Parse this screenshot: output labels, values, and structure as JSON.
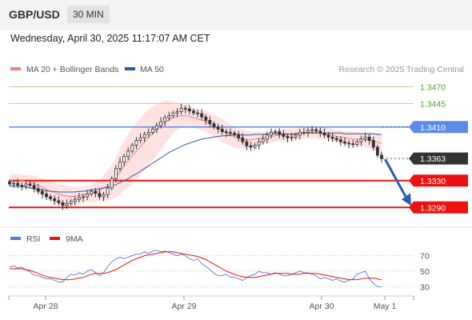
{
  "header": {
    "symbol": "GBP/USD",
    "timeframe": "30 MIN",
    "datetime": "Wednesday, April 30, 2025 11:17:07 AM CET"
  },
  "colors": {
    "bollinger_band": "#ffd9d9",
    "ma20": "#f08080",
    "ma50": "#2f5aa8",
    "candle": "#333333",
    "green_line": "#b5d98e",
    "green_label": "#55a32a",
    "blue_level": "#5b8bea",
    "red_level": "#ee1111",
    "price_tag": "#333333",
    "arrow": "#2a5db0",
    "rsi": "#5577dd",
    "rsi_ma": "#ee1111"
  },
  "chart_data": [
    {
      "type": "candlestick",
      "legend_placement": "top-left",
      "legend": [
        {
          "label": "MA 20 + Bollinger Bands",
          "color": "#f08080"
        },
        {
          "label": "MA 50",
          "color": "#2f5aa8"
        }
      ],
      "credit": "Research © 2025 Trading Central",
      "ylim": [
        1.327,
        1.3485
      ],
      "x_ticks": [
        "Apr 28",
        "Apr 29",
        "Apr 30",
        "May 1"
      ],
      "levels": [
        {
          "label": "1.3470",
          "value": 1.347,
          "style": "resistance-green"
        },
        {
          "label": "1.3445",
          "value": 1.3445,
          "style": "resistance-green"
        },
        {
          "label": "1.3410",
          "value": 1.341,
          "style": "pivot-blue"
        },
        {
          "label": "1.3363",
          "value": 1.3363,
          "style": "current-price"
        },
        {
          "label": "1.3330",
          "value": 1.333,
          "style": "support-red"
        },
        {
          "label": "1.3290",
          "value": 1.329,
          "style": "support-red"
        }
      ],
      "close_series": [
        1.3325,
        1.3326,
        1.3323,
        1.3322,
        1.3325,
        1.3323,
        1.3318,
        1.3314,
        1.331,
        1.3306,
        1.3303,
        1.33,
        1.3297,
        1.3293,
        1.3296,
        1.3299,
        1.3302,
        1.3305,
        1.3306,
        1.331,
        1.3314,
        1.3311,
        1.3306,
        1.3309,
        1.3319,
        1.3333,
        1.3348,
        1.3358,
        1.3366,
        1.3374,
        1.3383,
        1.339,
        1.3394,
        1.3399,
        1.3402,
        1.3407,
        1.3412,
        1.3418,
        1.3424,
        1.3427,
        1.3431,
        1.3433,
        1.3438,
        1.3437,
        1.3434,
        1.3431,
        1.343,
        1.3425,
        1.342,
        1.3415,
        1.341,
        1.3407,
        1.3403,
        1.3402,
        1.3401,
        1.3399,
        1.3394,
        1.3388,
        1.3382,
        1.338,
        1.3383,
        1.3388,
        1.3392,
        1.3398,
        1.3402,
        1.3403,
        1.3399,
        1.3396,
        1.3394,
        1.3395,
        1.3398,
        1.3402,
        1.3402,
        1.3405,
        1.3406,
        1.3404,
        1.3401,
        1.3398,
        1.3395,
        1.3393,
        1.3391,
        1.3388,
        1.3386,
        1.3385,
        1.3384,
        1.3388,
        1.3392,
        1.3395,
        1.339,
        1.338,
        1.3368,
        1.3363
      ],
      "ma20_series": [
        1.333,
        1.3331,
        1.3331,
        1.333,
        1.3329,
        1.3328,
        1.3326,
        1.3323,
        1.332,
        1.3317,
        1.3314,
        1.3312,
        1.331,
        1.3308,
        1.3307,
        1.3306,
        1.3307,
        1.3308,
        1.3309,
        1.331,
        1.3311,
        1.3313,
        1.3315,
        1.3319,
        1.3323,
        1.3328,
        1.3335,
        1.3343,
        1.3352,
        1.336,
        1.3367,
        1.3374,
        1.3381,
        1.3388,
        1.3394,
        1.34,
        1.3406,
        1.3412,
        1.3417,
        1.3421,
        1.3424,
        1.3426,
        1.3427,
        1.3427,
        1.3426,
        1.3424,
        1.3422,
        1.342,
        1.3418,
        1.3415,
        1.3412,
        1.3409,
        1.3405,
        1.3401,
        1.3398,
        1.3395,
        1.3393,
        1.3392,
        1.3391,
        1.3391,
        1.3392,
        1.3393,
        1.3394,
        1.3395,
        1.3396,
        1.3397,
        1.3398,
        1.3398,
        1.3398,
        1.3398,
        1.3399,
        1.34,
        1.3401,
        1.3402,
        1.3402,
        1.3402,
        1.3401,
        1.34,
        1.3399,
        1.3398,
        1.3396,
        1.3395,
        1.3394,
        1.3393,
        1.3392,
        1.3392,
        1.3392,
        1.3391,
        1.339,
        1.3389,
        1.3387,
        1.3385
      ],
      "band_width": [
        0.0009,
        0.0009,
        0.0009,
        0.0009,
        0.0009,
        0.001,
        0.0011,
        0.0012,
        0.0013,
        0.0014,
        0.0015,
        0.0015,
        0.0015,
        0.0016,
        0.0016,
        0.0015,
        0.0014,
        0.0013,
        0.0012,
        0.0012,
        0.0013,
        0.0014,
        0.0016,
        0.0019,
        0.0022,
        0.0026,
        0.003,
        0.0034,
        0.0037,
        0.004,
        0.0042,
        0.0043,
        0.0043,
        0.0043,
        0.0042,
        0.004,
        0.0038,
        0.0035,
        0.0032,
        0.0028,
        0.0024,
        0.002,
        0.0018,
        0.0016,
        0.0015,
        0.0015,
        0.0015,
        0.0015,
        0.0016,
        0.0016,
        0.0017,
        0.0017,
        0.0017,
        0.0017,
        0.0016,
        0.0016,
        0.0015,
        0.0014,
        0.0013,
        0.0012,
        0.0011,
        0.001,
        0.0009,
        0.0009,
        0.0009,
        0.0009,
        0.0009,
        0.0009,
        0.0009,
        0.0009,
        0.0009,
        0.0009,
        0.0009,
        0.0009,
        0.0009,
        0.0009,
        0.0009,
        0.0009,
        0.0009,
        0.0009,
        0.0009,
        0.001,
        0.001,
        0.0011,
        0.0011,
        0.0011,
        0.0011,
        0.0011,
        0.0012,
        0.0013,
        0.0014,
        0.0014
      ],
      "ma50_series": [
        1.3322,
        1.3322,
        1.3321,
        1.3321,
        1.332,
        1.3319,
        1.3318,
        1.3317,
        1.3316,
        1.3315,
        1.3314,
        1.3314,
        1.3313,
        1.3313,
        1.3313,
        1.3313,
        1.3313,
        1.3314,
        1.3314,
        1.3315,
        1.3316,
        1.3317,
        1.3318,
        1.3319,
        1.332,
        1.3322,
        1.3324,
        1.3327,
        1.333,
        1.3333,
        1.3337,
        1.334,
        1.3344,
        1.3348,
        1.3352,
        1.3356,
        1.336,
        1.3364,
        1.3368,
        1.3372,
        1.3375,
        1.3378,
        1.3381,
        1.3384,
        1.3386,
        1.3388,
        1.339,
        1.3392,
        1.3393,
        1.3394,
        1.3395,
        1.3396,
        1.3397,
        1.3397,
        1.3398,
        1.3398,
        1.3398,
        1.3398,
        1.3398,
        1.3398,
        1.3399,
        1.3399,
        1.3399,
        1.34,
        1.34,
        1.34,
        1.34,
        1.34,
        1.34,
        1.34,
        1.34,
        1.3401,
        1.3401,
        1.3401,
        1.3401,
        1.3401,
        1.3401,
        1.3401,
        1.3401,
        1.3401,
        1.3401,
        1.3401,
        1.34,
        1.34,
        1.34,
        1.34,
        1.34,
        1.34,
        1.34,
        1.34,
        1.3399,
        1.3399
      ],
      "forecast_arrow": {
        "from": 1.3363,
        "to": 1.329
      }
    },
    {
      "type": "line",
      "legend_placement": "top-left",
      "legend": [
        {
          "label": "RSI",
          "color": "#5577dd"
        },
        {
          "label": "9MA",
          "color": "#ee1111"
        }
      ],
      "ylim": [
        22,
        82
      ],
      "y_ticks": [
        "70",
        "50",
        "30"
      ],
      "rsi_series": [
        55,
        57,
        54,
        55,
        52,
        49,
        45,
        44,
        42,
        40,
        40,
        38,
        36,
        36,
        42,
        46,
        45,
        48,
        46,
        50,
        52,
        48,
        44,
        48,
        56,
        62,
        66,
        68,
        66,
        68,
        70,
        72,
        72,
        75,
        73,
        76,
        77,
        75,
        76,
        74,
        72,
        70,
        72,
        70,
        66,
        64,
        66,
        60,
        56,
        52,
        47,
        44,
        44,
        46,
        42,
        42,
        40,
        38,
        42,
        44,
        46,
        50,
        48,
        48,
        46,
        48,
        46,
        44,
        44,
        46,
        48,
        50,
        48,
        48,
        46,
        44,
        40,
        42,
        40,
        38,
        40,
        37,
        36,
        38,
        40,
        46,
        48,
        50,
        40,
        34,
        30,
        30
      ],
      "rsi_ma_series": [
        53,
        53,
        53,
        53,
        52,
        51,
        49,
        47,
        45,
        43,
        42,
        41,
        40,
        39,
        39,
        39,
        40,
        41,
        42,
        44,
        46,
        47,
        47,
        47,
        48,
        50,
        52,
        55,
        58,
        61,
        64,
        66,
        68,
        70,
        71,
        72,
        73,
        74,
        75,
        75,
        75,
        74,
        73,
        72,
        71,
        70,
        69,
        67,
        65,
        62,
        59,
        56,
        53,
        50,
        48,
        46,
        44,
        43,
        42,
        42,
        42,
        43,
        44,
        45,
        46,
        47,
        47,
        47,
        47,
        46,
        46,
        46,
        47,
        47,
        47,
        47,
        46,
        45,
        44,
        43,
        42,
        41,
        40,
        39,
        39,
        39,
        40,
        41,
        41,
        41,
        40,
        39
      ]
    }
  ]
}
